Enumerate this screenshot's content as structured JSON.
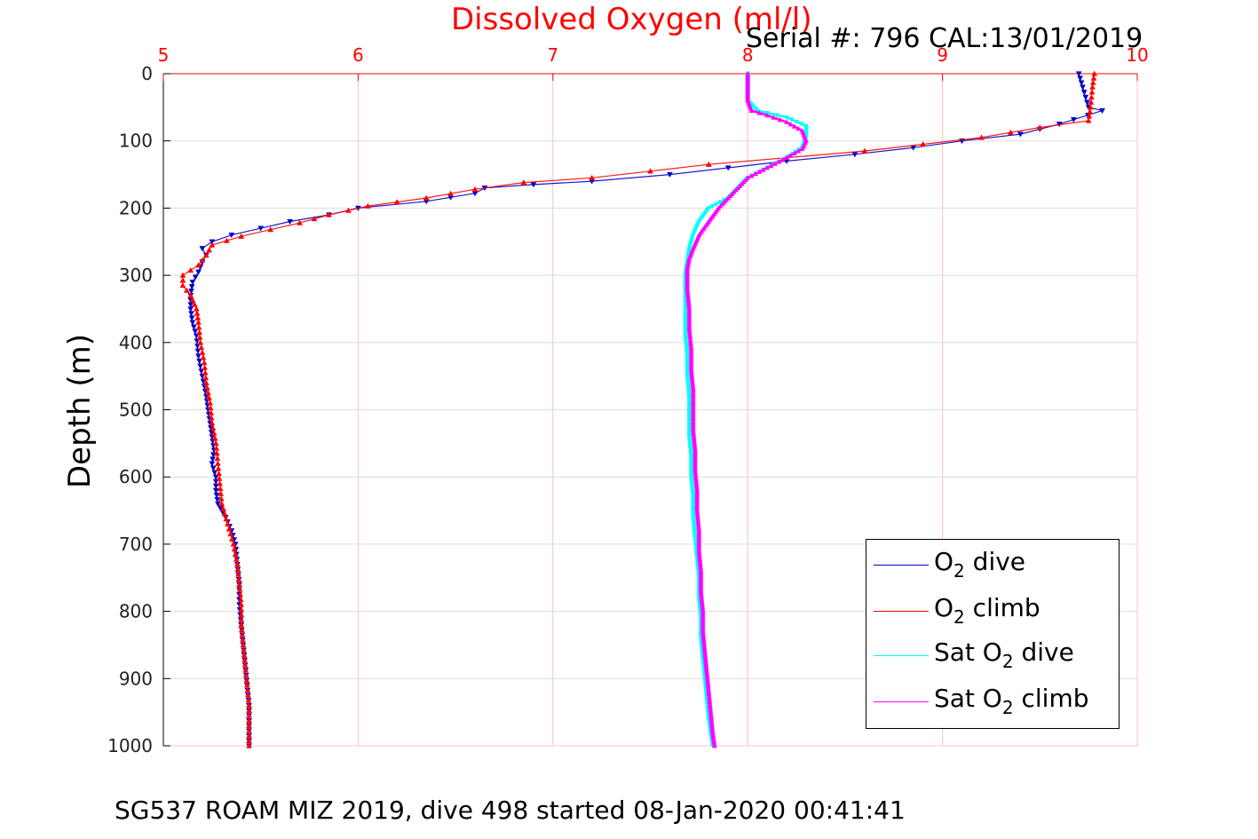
{
  "chart_data": {
    "type": "scatter",
    "title": "Dissolved Oxygen (ml/l)",
    "annotation": "Serial #: 796  CAL:13/01/2019",
    "footer": "SG537 ROAM MIZ 2019, dive 498 started 08-Jan-2020 00:41:41",
    "xlabel": "",
    "ylabel": "Depth (m)",
    "xlim": [
      5,
      10
    ],
    "ylim": [
      1000,
      0
    ],
    "y_reversed": true,
    "x_axis_position": "top",
    "x_ticks": [
      "5",
      "6",
      "7",
      "8",
      "9",
      "10"
    ],
    "y_ticks": [
      "0",
      "100",
      "200",
      "300",
      "400",
      "500",
      "600",
      "700",
      "800",
      "900",
      "1000"
    ],
    "grid": true,
    "grid_color": "#ffc0c0",
    "x_tick_color": "#ff0000",
    "legend_position": "bottom-right",
    "series": [
      {
        "name": "O2 dive",
        "legend": {
          "prefix": "O",
          "sub": "2",
          "suffix": " dive"
        },
        "color": "#0000cc",
        "marker": "triangle-down",
        "points": [
          [
            9.7,
            0
          ],
          [
            9.72,
            20
          ],
          [
            9.75,
            50
          ],
          [
            9.82,
            55
          ],
          [
            9.6,
            75
          ],
          [
            9.4,
            90
          ],
          [
            9.1,
            100
          ],
          [
            8.85,
            110
          ],
          [
            8.55,
            120
          ],
          [
            8.2,
            130
          ],
          [
            7.9,
            140
          ],
          [
            7.6,
            150
          ],
          [
            7.2,
            160
          ],
          [
            6.9,
            165
          ],
          [
            6.65,
            170
          ],
          [
            6.6,
            178
          ],
          [
            6.35,
            190
          ],
          [
            6.0,
            200
          ],
          [
            5.85,
            210
          ],
          [
            5.65,
            220
          ],
          [
            5.5,
            230
          ],
          [
            5.35,
            240
          ],
          [
            5.25,
            250
          ],
          [
            5.2,
            260
          ],
          [
            5.22,
            270
          ],
          [
            5.2,
            280
          ],
          [
            5.18,
            295
          ],
          [
            5.15,
            310
          ],
          [
            5.14,
            330
          ],
          [
            5.14,
            350
          ],
          [
            5.15,
            370
          ],
          [
            5.17,
            390
          ],
          [
            5.18,
            420
          ],
          [
            5.2,
            450
          ],
          [
            5.22,
            480
          ],
          [
            5.23,
            500
          ],
          [
            5.24,
            520
          ],
          [
            5.25,
            540
          ],
          [
            5.26,
            560
          ],
          [
            5.25,
            580
          ],
          [
            5.27,
            600
          ],
          [
            5.27,
            620
          ],
          [
            5.28,
            640
          ],
          [
            5.32,
            660
          ],
          [
            5.35,
            680
          ],
          [
            5.37,
            700
          ],
          [
            5.38,
            730
          ],
          [
            5.39,
            760
          ],
          [
            5.39,
            790
          ],
          [
            5.4,
            820
          ],
          [
            5.41,
            850
          ],
          [
            5.42,
            880
          ],
          [
            5.43,
            910
          ],
          [
            5.44,
            940
          ],
          [
            5.44,
            970
          ],
          [
            5.44,
            1000
          ]
        ]
      },
      {
        "name": "O2 climb",
        "legend": {
          "prefix": "O",
          "sub": "2",
          "suffix": " climb"
        },
        "color": "#ff0000",
        "marker": "triangle-up",
        "points": [
          [
            9.78,
            0
          ],
          [
            9.77,
            20
          ],
          [
            9.76,
            50
          ],
          [
            9.75,
            70
          ],
          [
            9.5,
            80
          ],
          [
            9.2,
            95
          ],
          [
            8.9,
            105
          ],
          [
            8.6,
            115
          ],
          [
            8.2,
            125
          ],
          [
            7.8,
            135
          ],
          [
            7.5,
            145
          ],
          [
            7.2,
            155
          ],
          [
            6.85,
            162
          ],
          [
            6.6,
            172
          ],
          [
            6.35,
            185
          ],
          [
            6.05,
            197
          ],
          [
            5.85,
            210
          ],
          [
            5.7,
            222
          ],
          [
            5.55,
            232
          ],
          [
            5.4,
            242
          ],
          [
            5.25,
            255
          ],
          [
            5.22,
            270
          ],
          [
            5.18,
            285
          ],
          [
            5.1,
            300
          ],
          [
            5.1,
            315
          ],
          [
            5.14,
            330
          ],
          [
            5.17,
            350
          ],
          [
            5.18,
            370
          ],
          [
            5.19,
            400
          ],
          [
            5.21,
            430
          ],
          [
            5.22,
            460
          ],
          [
            5.24,
            490
          ],
          [
            5.25,
            520
          ],
          [
            5.27,
            550
          ],
          [
            5.28,
            580
          ],
          [
            5.29,
            610
          ],
          [
            5.3,
            640
          ],
          [
            5.33,
            670
          ],
          [
            5.36,
            700
          ],
          [
            5.38,
            730
          ],
          [
            5.39,
            760
          ],
          [
            5.4,
            790
          ],
          [
            5.4,
            820
          ],
          [
            5.41,
            850
          ],
          [
            5.42,
            880
          ],
          [
            5.43,
            910
          ],
          [
            5.44,
            940
          ],
          [
            5.44,
            970
          ],
          [
            5.44,
            1000
          ]
        ]
      },
      {
        "name": "Sat O2 dive",
        "legend": {
          "prefix": "Sat O",
          "sub": "2",
          "suffix": " dive"
        },
        "color": "#00ffff",
        "marker": "triangle-down",
        "points": [
          [
            8.0,
            0
          ],
          [
            8.0,
            20
          ],
          [
            8.0,
            40
          ],
          [
            8.05,
            55
          ],
          [
            8.2,
            65
          ],
          [
            8.3,
            78
          ],
          [
            8.3,
            95
          ],
          [
            8.28,
            110
          ],
          [
            8.2,
            125
          ],
          [
            8.1,
            140
          ],
          [
            8.0,
            155
          ],
          [
            7.95,
            170
          ],
          [
            7.9,
            185
          ],
          [
            7.8,
            200
          ],
          [
            7.75,
            220
          ],
          [
            7.72,
            240
          ],
          [
            7.7,
            260
          ],
          [
            7.69,
            280
          ],
          [
            7.68,
            300
          ],
          [
            7.68,
            330
          ],
          [
            7.68,
            360
          ],
          [
            7.68,
            390
          ],
          [
            7.69,
            420
          ],
          [
            7.69,
            450
          ],
          [
            7.7,
            480
          ],
          [
            7.7,
            510
          ],
          [
            7.7,
            540
          ],
          [
            7.71,
            570
          ],
          [
            7.71,
            600
          ],
          [
            7.72,
            630
          ],
          [
            7.72,
            660
          ],
          [
            7.73,
            690
          ],
          [
            7.74,
            720
          ],
          [
            7.75,
            750
          ],
          [
            7.75,
            780
          ],
          [
            7.76,
            810
          ],
          [
            7.76,
            840
          ],
          [
            7.77,
            870
          ],
          [
            7.78,
            900
          ],
          [
            7.79,
            930
          ],
          [
            7.8,
            960
          ],
          [
            7.82,
            1000
          ]
        ]
      },
      {
        "name": "Sat O2 climb",
        "legend": {
          "prefix": "Sat O",
          "sub": "2",
          "suffix": " climb"
        },
        "color": "#ff00ff",
        "marker": "triangle-up",
        "points": [
          [
            8.0,
            0
          ],
          [
            8.0,
            20
          ],
          [
            8.0,
            40
          ],
          [
            8.02,
            55
          ],
          [
            8.1,
            62
          ],
          [
            8.2,
            72
          ],
          [
            8.28,
            85
          ],
          [
            8.3,
            100
          ],
          [
            8.28,
            112
          ],
          [
            8.2,
            125
          ],
          [
            8.1,
            140
          ],
          [
            8.0,
            155
          ],
          [
            7.95,
            170
          ],
          [
            7.9,
            185
          ],
          [
            7.85,
            200
          ],
          [
            7.8,
            220
          ],
          [
            7.75,
            240
          ],
          [
            7.72,
            260
          ],
          [
            7.7,
            275
          ],
          [
            7.69,
            290
          ],
          [
            7.69,
            320
          ],
          [
            7.7,
            350
          ],
          [
            7.7,
            380
          ],
          [
            7.71,
            410
          ],
          [
            7.71,
            440
          ],
          [
            7.72,
            470
          ],
          [
            7.72,
            500
          ],
          [
            7.72,
            530
          ],
          [
            7.73,
            560
          ],
          [
            7.73,
            590
          ],
          [
            7.74,
            620
          ],
          [
            7.74,
            650
          ],
          [
            7.75,
            680
          ],
          [
            7.75,
            710
          ],
          [
            7.76,
            740
          ],
          [
            7.76,
            770
          ],
          [
            7.77,
            800
          ],
          [
            7.77,
            830
          ],
          [
            7.78,
            860
          ],
          [
            7.79,
            890
          ],
          [
            7.8,
            920
          ],
          [
            7.81,
            950
          ],
          [
            7.82,
            980
          ],
          [
            7.83,
            1000
          ]
        ]
      }
    ]
  }
}
